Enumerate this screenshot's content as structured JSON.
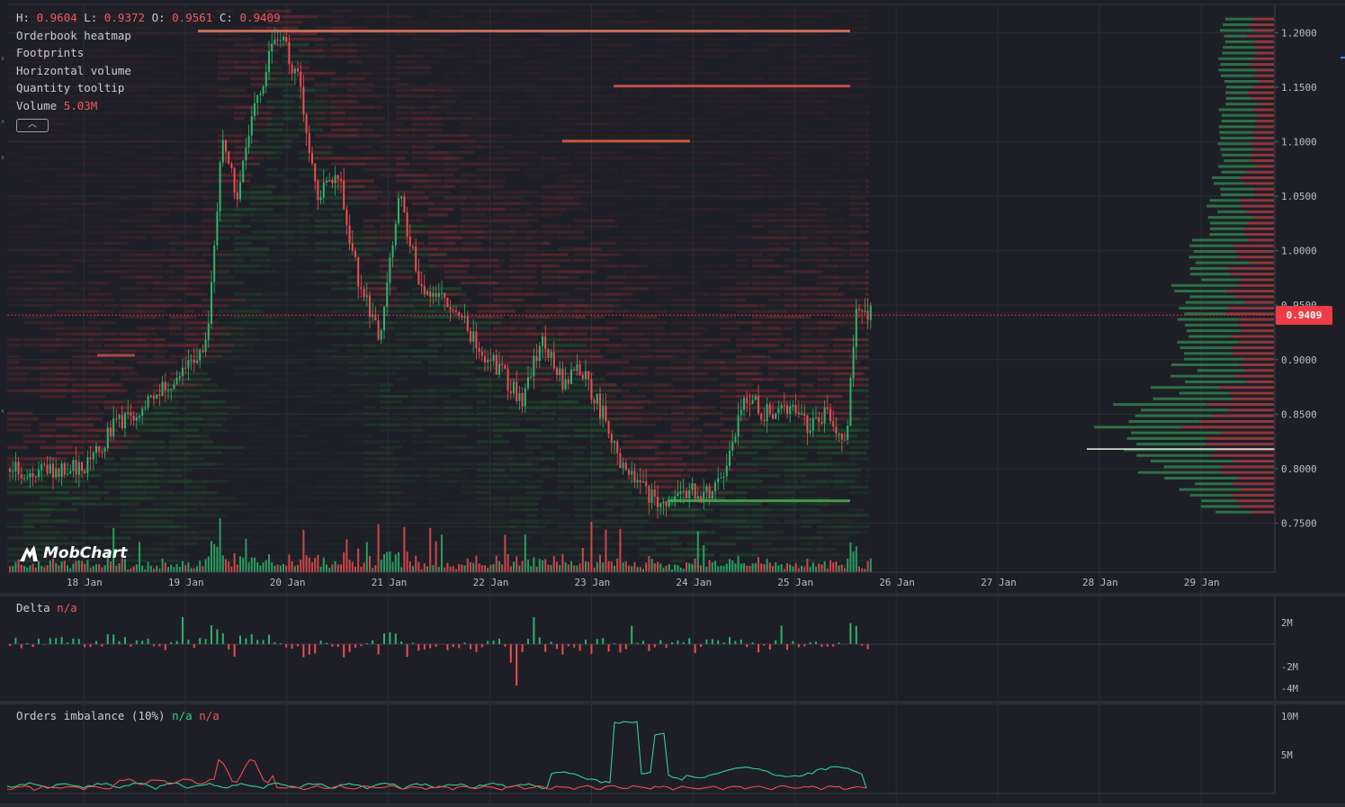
{
  "legend": {
    "ohlc": [
      {
        "label": "H:",
        "value": "0.9604"
      },
      {
        "label": "L:",
        "value": "0.9372"
      },
      {
        "label": "O:",
        "value": "0.9561"
      },
      {
        "label": "C:",
        "value": "0.9409"
      }
    ],
    "indicators": [
      "Orderbook heatmap",
      "Footprints",
      "Horizontal volume",
      "Quantity tooltip"
    ],
    "volume_label": "Volume",
    "volume_value": "5.03M",
    "collapse_icon": "chevron-up-icon"
  },
  "current_price": "0.9409",
  "logo_text": "MobChart",
  "delta_pane": {
    "title": "Delta",
    "value": "n/a",
    "ticks": [
      "2M",
      "-2M",
      "-4M"
    ]
  },
  "imbalance_pane": {
    "title": "Orders imbalance (10%)",
    "value_a": "n/a",
    "value_b": "n/a",
    "ticks": [
      "10M",
      "5M"
    ]
  },
  "colors": {
    "up": "#2bb36f",
    "down": "#ef4b52",
    "bg": "#1e1f26",
    "grid": "#2a2c35",
    "heat_red": "#6b2a30",
    "heat_green": "#1f4a2c",
    "price_label": "#ef3b45"
  },
  "chart_data": [
    {
      "type": "candlestick",
      "x_ticks": [
        "18 Jan",
        "19 Jan",
        "20 Jan",
        "21 Jan",
        "22 Jan",
        "23 Jan",
        "24 Jan",
        "25 Jan",
        "26 Jan",
        "27 Jan",
        "28 Jan",
        "29 Jan"
      ],
      "y_ticks": [
        "1.2000",
        "1.1500",
        "1.1000",
        "1.0500",
        "1.0000",
        "0.9500",
        "0.9000",
        "0.8500",
        "0.8000",
        "0.7500"
      ],
      "ylim": [
        0.705,
        1.225
      ],
      "close_path": [
        [
          0.0,
          0.8
        ],
        [
          0.3,
          0.84
        ],
        [
          0.6,
          0.86
        ],
        [
          0.9,
          0.88
        ],
        [
          1.2,
          0.91
        ],
        [
          1.35,
          1.1
        ],
        [
          1.5,
          1.05
        ],
        [
          1.7,
          1.14
        ],
        [
          1.9,
          1.2
        ],
        [
          2.1,
          1.16
        ],
        [
          2.3,
          1.05
        ],
        [
          2.5,
          1.07
        ],
        [
          2.7,
          0.97
        ],
        [
          2.9,
          0.92
        ],
        [
          3.1,
          1.05
        ],
        [
          3.3,
          0.97
        ],
        [
          3.5,
          0.96
        ],
        [
          3.7,
          0.94
        ],
        [
          3.9,
          0.91
        ],
        [
          4.1,
          0.89
        ],
        [
          4.3,
          0.86
        ],
        [
          4.5,
          0.92
        ],
        [
          4.7,
          0.88
        ],
        [
          4.9,
          0.89
        ],
        [
          5.1,
          0.85
        ],
        [
          5.3,
          0.8
        ],
        [
          5.5,
          0.78
        ],
        [
          5.7,
          0.77
        ],
        [
          5.9,
          0.78
        ],
        [
          6.1,
          0.775
        ],
        [
          6.3,
          0.8
        ],
        [
          6.5,
          0.87
        ],
        [
          6.7,
          0.85
        ],
        [
          6.9,
          0.86
        ],
        [
          7.1,
          0.84
        ],
        [
          7.3,
          0.85
        ],
        [
          7.5,
          0.83
        ],
        [
          7.6,
          0.95
        ],
        [
          7.75,
          0.941
        ]
      ]
    },
    {
      "type": "bar",
      "title": "Delta",
      "y_ticks": [
        "2M",
        "-2M",
        "-4M"
      ],
      "ylim": [
        -4.5,
        2.5
      ]
    },
    {
      "type": "line",
      "title": "Orders imbalance (10%)",
      "y_ticks": [
        "10M",
        "5M"
      ],
      "ylim": [
        0,
        10
      ]
    }
  ]
}
